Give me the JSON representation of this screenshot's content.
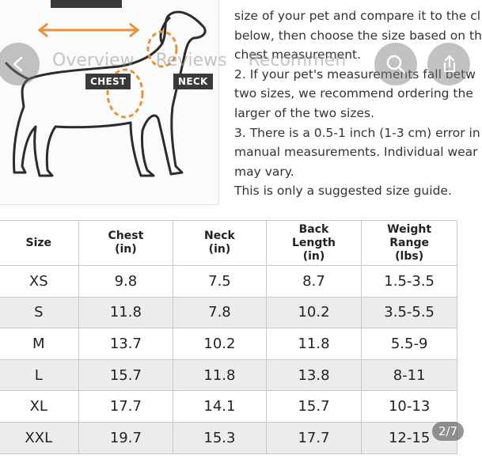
{
  "nav": {
    "tabs": [
      "Overview",
      "Reviews",
      "Recommen"
    ],
    "page_counter": "2/7"
  },
  "diagram": {
    "labels": {
      "chest": "CHEST",
      "neck": "NECK"
    },
    "accent_color": "#e8913a"
  },
  "info_lines": [
    "size of your pet and compare it to the cl",
    "below, then choose the size based on th",
    "chest measurement.",
    "2. If your pet's measurements fall betw",
    "two sizes, we recommend ordering the",
    "larger of the two sizes.",
    "3. There is a 0.5-1 inch (1-3 cm) error in",
    "manual measurements. Individual wear",
    "may vary.",
    "This is only a suggested size guide."
  ],
  "size_table": {
    "headers": [
      "Size",
      "Chest\n(in)",
      "Neck\n(in)",
      "Back\nLength\n(in)",
      "Weight\nRange\n(lbs)"
    ],
    "rows": [
      [
        "XS",
        "9.8",
        "7.5",
        "8.7",
        "1.5-3.5"
      ],
      [
        "S",
        "11.8",
        "7.8",
        "10.2",
        "3.5-5.5"
      ],
      [
        "M",
        "13.7",
        "10.2",
        "11.8",
        "5.5-9"
      ],
      [
        "L",
        "15.7",
        "11.8",
        "13.8",
        "8-11"
      ],
      [
        "XL",
        "17.7",
        "14.1",
        "15.7",
        "10-13"
      ],
      [
        "XXL",
        "19.7",
        "15.3",
        "17.7",
        "12-15"
      ]
    ]
  },
  "colors": {
    "row_shade": "#ececec",
    "border": "#c9c9c9"
  }
}
